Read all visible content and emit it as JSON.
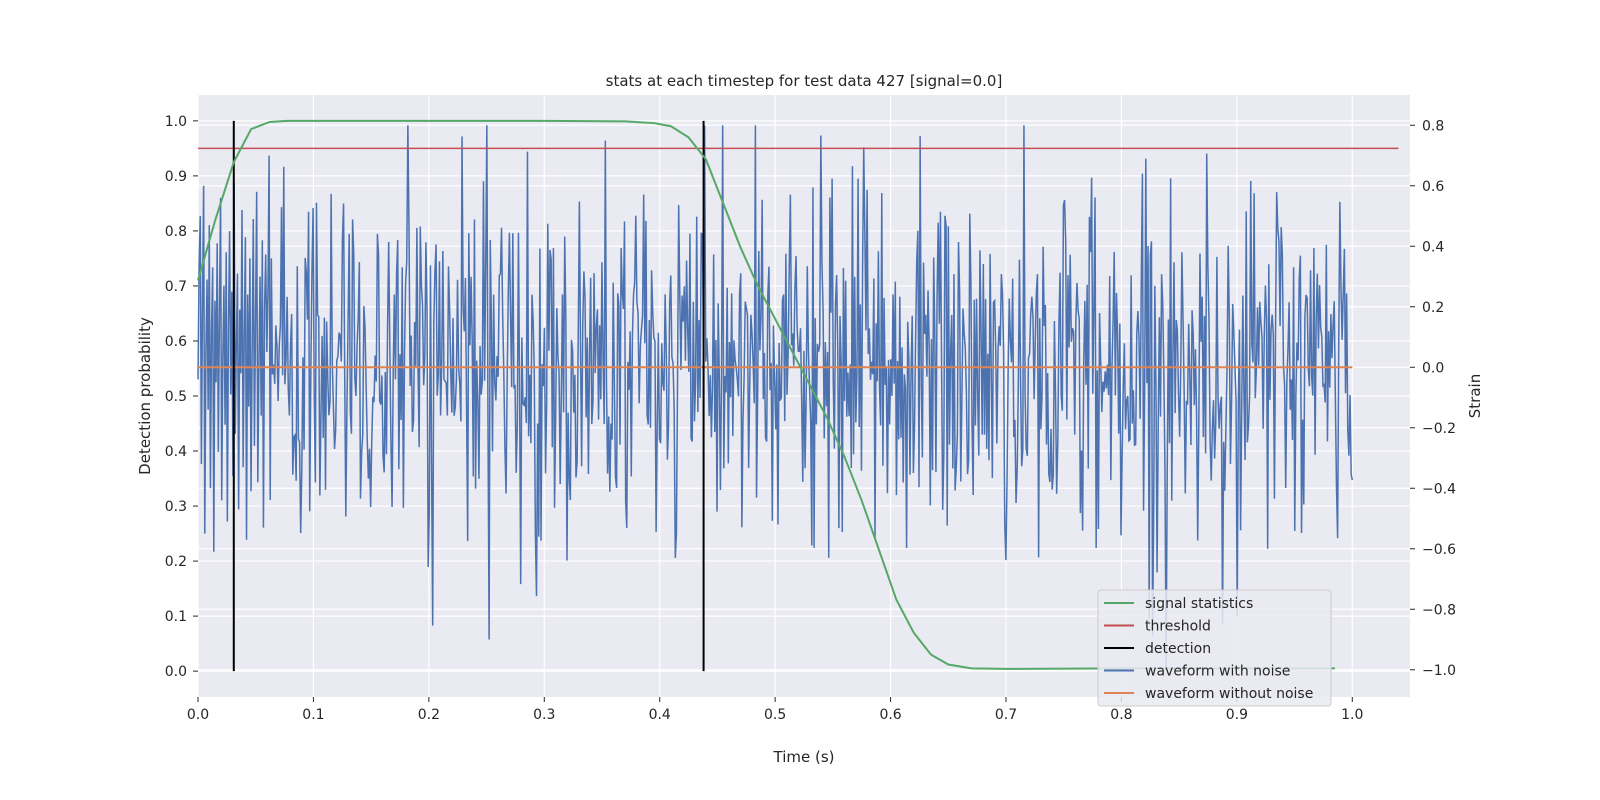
{
  "chart_data": {
    "type": "line",
    "title": "stats at each timestep for test data 427 [signal=0.0]",
    "xlabel": "Time (s)",
    "ylabel_left": "Detection probability",
    "ylabel_right": "Strain",
    "xlim": [
      0.0,
      1.05
    ],
    "ylim_left": [
      -0.047,
      1.047
    ],
    "ylim_right": [
      -1.09,
      0.9
    ],
    "x_ticks": [
      0.0,
      0.1,
      0.2,
      0.3,
      0.4,
      0.5,
      0.6,
      0.7,
      0.8,
      0.9,
      1.0
    ],
    "x_tick_labels": [
      "0.0",
      "0.1",
      "0.2",
      "0.3",
      "0.4",
      "0.5",
      "0.6",
      "0.7",
      "0.8",
      "0.9",
      "1.0"
    ],
    "left_ticks": [
      0.0,
      0.1,
      0.2,
      0.3,
      0.4,
      0.5,
      0.6,
      0.7,
      0.8,
      0.9,
      1.0
    ],
    "left_tick_labels": [
      "0.0",
      "0.1",
      "0.2",
      "0.3",
      "0.4",
      "0.5",
      "0.6",
      "0.7",
      "0.8",
      "0.9",
      "1.0"
    ],
    "right_ticks": [
      -1.0,
      -0.8,
      -0.6,
      -0.4,
      -0.2,
      0.0,
      0.2,
      0.4,
      0.6,
      0.8
    ],
    "right_tick_labels": [
      "−1.0",
      "−0.8",
      "−0.6",
      "−0.4",
      "−0.2",
      "0.0",
      "0.2",
      "0.4",
      "0.6",
      "0.8"
    ],
    "grid": true,
    "legend_position": "lower-right",
    "background": "#eaeaf2",
    "series": [
      {
        "name": "signal statistics",
        "axis": "left",
        "color": "#55a868",
        "x": [
          0.0,
          0.015,
          0.031,
          0.046,
          0.062,
          0.077,
          0.1,
          0.2,
          0.3,
          0.37,
          0.395,
          0.41,
          0.425,
          0.44,
          0.455,
          0.47,
          0.485,
          0.5,
          0.515,
          0.53,
          0.545,
          0.56,
          0.575,
          0.59,
          0.605,
          0.62,
          0.635,
          0.65,
          0.67,
          0.7,
          0.8,
          0.9,
          0.985
        ],
        "y": [
          0.71,
          0.82,
          0.925,
          0.985,
          0.998,
          1.0,
          1.0,
          1.0,
          1.0,
          0.999,
          0.996,
          0.99,
          0.97,
          0.93,
          0.85,
          0.77,
          0.7,
          0.64,
          0.58,
          0.52,
          0.46,
          0.39,
          0.31,
          0.22,
          0.13,
          0.07,
          0.03,
          0.012,
          0.005,
          0.004,
          0.005,
          0.005,
          0.005
        ]
      },
      {
        "name": "threshold",
        "axis": "left",
        "color": "#c44e52",
        "x": [
          0.0,
          1.04
        ],
        "y": [
          0.95,
          0.95
        ]
      },
      {
        "name": "detection",
        "axis": "left",
        "color": "#000000",
        "vlines": [
          0.031,
          0.438
        ],
        "y": [
          0.0,
          1.0
        ]
      },
      {
        "name": "waveform with noise",
        "axis": "right",
        "color": "#4c72b0",
        "n_points": 1024,
        "approx_std": 0.3,
        "range": [
          -1.0,
          0.8
        ],
        "y": [
          -0.04,
          0.34,
          0.5,
          -0.32,
          0.21,
          0.6,
          -0.55,
          0.05,
          0.29,
          -0.14,
          0.47,
          -0.4,
          0.12,
          0.33,
          -0.61,
          0.22,
          -0.05,
          0.41,
          -0.28,
          0.18,
          0.56,
          -0.44,
          0.03,
          0.27,
          -0.19,
          0.38,
          -0.51,
          0.14,
          0.45,
          -0.09,
          0.25,
          -0.36,
          0.61,
          -0.22,
          0.08,
          0.31,
          -0.47,
          0.19,
          -0.02,
          0.52,
          -0.33,
          0.11,
          0.43,
          -0.57,
          0.24,
          -0.13,
          0.36,
          -0.41,
          0.06,
          0.49,
          -0.26,
          0.16,
          0.58,
          -0.38,
          0.01,
          0.3,
          -0.16,
          0.42,
          -0.53,
          0.2
        ]
      },
      {
        "name": "waveform without noise",
        "axis": "right",
        "color": "#dd8452",
        "x": [
          0.0,
          1.0
        ],
        "y": [
          0.0,
          0.0
        ]
      }
    ]
  }
}
